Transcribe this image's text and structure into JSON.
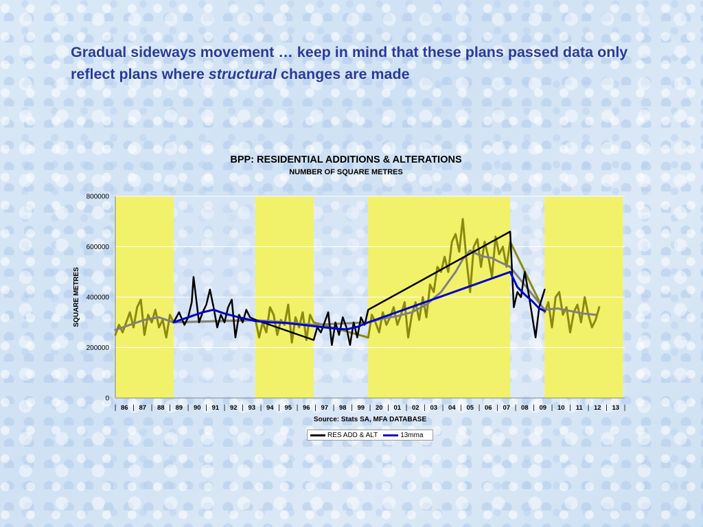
{
  "slide": {
    "title_part1": "Gradual sideways movement … keep in mind that these plans passed data only reflect plans where",
    "title_emphasis": "structural",
    "title_part2": "changes are made"
  },
  "colors": {
    "title": "#2b3a9a",
    "highlight_band": "#f2f26a",
    "res_add_alt": "#000000",
    "mma13": "#0000cc",
    "olive_series": "#8a8a10",
    "gray_trend": "#808080"
  },
  "chart_data": {
    "type": "line",
    "title": "BPP: RESIDENTIAL ADDITIONS & ALTERATIONS",
    "subtitle": "NUMBER OF SQUARE METRES",
    "ylabel": "SQUARE METRES",
    "xlabel": "Source: Stats SA, MFA DATABASE",
    "ylim": [
      0,
      800000
    ],
    "yticks": [
      "0",
      "200000",
      "400000",
      "600000",
      "800000"
    ],
    "xticks": [
      "86",
      "87",
      "88",
      "89",
      "90",
      "91",
      "92",
      "93",
      "94",
      "95",
      "96",
      "97",
      "98",
      "99",
      "20",
      "01",
      "02",
      "03",
      "04",
      "05",
      "06",
      "07",
      "08",
      "09",
      "10",
      "11",
      "12",
      "13"
    ],
    "grid": true,
    "legend_position": "bottom",
    "highlight_bands": [
      [
        1986.0,
        1989.2
      ],
      [
        1993.7,
        1996.9
      ],
      [
        1999.9,
        2007.7
      ],
      [
        2009.6,
        2013.9
      ]
    ],
    "series": [
      {
        "name": "RES ADD & ALT",
        "x": [
          1989.2,
          1989.5,
          1989.8,
          1990.0,
          1990.2,
          1990.3,
          1990.6,
          1990.8,
          1991.0,
          1991.2,
          1991.4,
          1991.6,
          1991.8,
          1992.0,
          1992.2,
          1992.4,
          1992.6,
          1992.8,
          1993.0,
          1993.2,
          1993.4,
          1993.7,
          1996.9,
          1997.1,
          1997.3,
          1997.5,
          1997.7,
          1997.9,
          1998.1,
          1998.3,
          1998.5,
          1998.7,
          1998.9,
          1999.1,
          1999.3,
          1999.5,
          1999.7,
          1999.9,
          2007.7,
          2007.9,
          2008.1,
          2008.3,
          2008.5,
          2008.7,
          2008.9,
          2009.1,
          2009.3,
          2009.6
        ],
        "y": [
          300000,
          340000,
          290000,
          320000,
          380000,
          480000,
          300000,
          340000,
          370000,
          430000,
          360000,
          280000,
          330000,
          300000,
          360000,
          390000,
          240000,
          330000,
          300000,
          350000,
          320000,
          310000,
          230000,
          280000,
          260000,
          300000,
          340000,
          210000,
          300000,
          250000,
          320000,
          280000,
          210000,
          300000,
          240000,
          320000,
          290000,
          350000,
          660000,
          360000,
          420000,
          400000,
          500000,
          420000,
          330000,
          240000,
          360000,
          430000
        ]
      },
      {
        "name": "13mma",
        "x": [
          1989.2,
          1990.0,
          1990.8,
          1991.4,
          1992.0,
          1992.8,
          1993.7,
          1994.5,
          1995.3,
          1996.1,
          1996.9,
          1997.5,
          1998.1,
          1998.7,
          1999.3,
          1999.9,
          2007.7,
          2008.1,
          2008.5,
          2008.9,
          2009.3,
          2009.6
        ],
        "y": [
          300000,
          320000,
          340000,
          350000,
          335000,
          320000,
          305000,
          300000,
          298000,
          292000,
          285000,
          280000,
          275000,
          272000,
          282000,
          300000,
          500000,
          440000,
          410000,
          385000,
          355000,
          345000
        ]
      },
      {
        "x": [
          1986.0,
          1986.2,
          1986.4,
          1986.6,
          1986.8,
          1987.0,
          1987.2,
          1987.4,
          1987.6,
          1987.8,
          1988.0,
          1988.2,
          1988.4,
          1988.6,
          1988.8,
          1989.0,
          1989.2,
          1993.7,
          1993.9,
          1994.1,
          1994.3,
          1994.5,
          1994.7,
          1994.9,
          1995.1,
          1995.3,
          1995.5,
          1995.7,
          1995.9,
          1996.1,
          1996.3,
          1996.5,
          1996.7,
          1996.9,
          1999.9,
          2000.1,
          2000.3,
          2000.5,
          2000.7,
          2000.9,
          2001.1,
          2001.3,
          2001.5,
          2001.7,
          2001.9,
          2002.1,
          2002.3,
          2002.5,
          2002.7,
          2002.9,
          2003.1,
          2003.3,
          2003.5,
          2003.7,
          2003.9,
          2004.1,
          2004.3,
          2004.5,
          2004.7,
          2004.9,
          2005.1,
          2005.3,
          2005.5,
          2005.7,
          2005.9,
          2006.1,
          2006.3,
          2006.5,
          2006.7,
          2006.9,
          2007.1,
          2007.3,
          2007.5,
          2007.7,
          2009.6,
          2009.8,
          2010.0,
          2010.2,
          2010.4,
          2010.6,
          2010.8,
          2011.0,
          2011.2,
          2011.4,
          2011.6,
          2011.8,
          2012.0,
          2012.2,
          2012.4,
          2012.6
        ],
        "y": [
          250000,
          290000,
          260000,
          300000,
          340000,
          280000,
          360000,
          390000,
          250000,
          330000,
          300000,
          350000,
          280000,
          310000,
          240000,
          330000,
          300000,
          310000,
          240000,
          300000,
          260000,
          360000,
          330000,
          250000,
          310000,
          290000,
          370000,
          220000,
          320000,
          280000,
          340000,
          230000,
          330000,
          300000,
          240000,
          330000,
          300000,
          260000,
          340000,
          290000,
          320000,
          360000,
          290000,
          330000,
          380000,
          240000,
          330000,
          380000,
          310000,
          400000,
          320000,
          450000,
          420000,
          520000,
          500000,
          560000,
          500000,
          620000,
          650000,
          580000,
          710000,
          550000,
          420000,
          600000,
          630000,
          520000,
          620000,
          560000,
          480000,
          640000,
          570000,
          600000,
          520000,
          620000,
          340000,
          380000,
          280000,
          400000,
          420000,
          330000,
          360000,
          260000,
          340000,
          370000,
          300000,
          400000,
          330000,
          280000,
          310000,
          360000
        ]
      },
      {
        "x": [
          1986.0,
          1986.8,
          1987.6,
          1988.4,
          1989.2,
          1993.7,
          1994.5,
          1995.3,
          1996.1,
          1996.9,
          1999.9,
          2000.7,
          2001.5,
          2002.3,
          2003.1,
          2003.9,
          2004.7,
          2005.1,
          2005.5,
          2005.9,
          2006.3,
          2006.7,
          2007.1,
          2007.7,
          2009.6,
          2010.3,
          2011.0,
          2011.7,
          2012.4
        ],
        "y": [
          270000,
          290000,
          310000,
          320000,
          300000,
          308000,
          305000,
          300000,
          295000,
          290000,
          300000,
          315000,
          325000,
          340000,
          370000,
          420000,
          500000,
          550000,
          585000,
          570000,
          560000,
          555000,
          540000,
          520000,
          350000,
          355000,
          345000,
          335000,
          330000
        ]
      }
    ]
  }
}
